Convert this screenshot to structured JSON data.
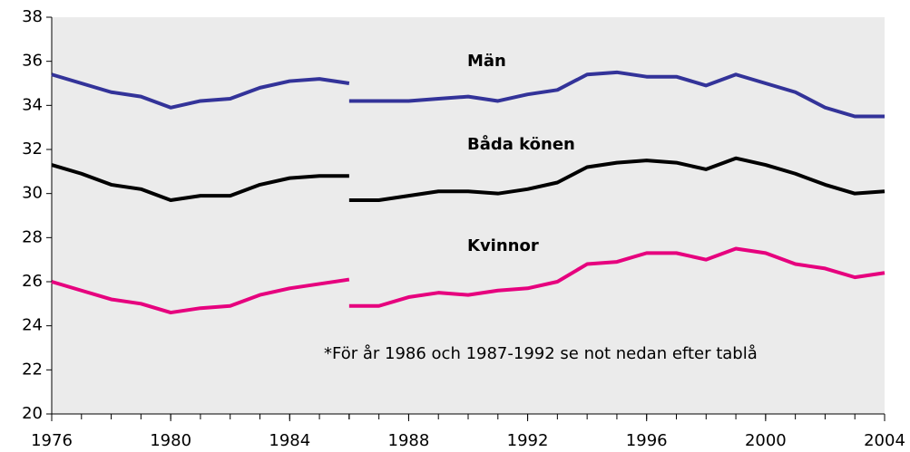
{
  "chart_data": {
    "type": "line",
    "x": [
      1976,
      1977,
      1978,
      1979,
      1980,
      1981,
      1982,
      1983,
      1984,
      1985,
      1986,
      1986,
      1986,
      1987,
      1988,
      1989,
      1990,
      1991,
      1992,
      1993,
      1994,
      1995,
      1996,
      1997,
      1998,
      1999,
      2000,
      2001,
      2002,
      2003,
      2004
    ],
    "series": [
      {
        "name": "Män",
        "color": "#333399",
        "values": [
          35.4,
          35.0,
          34.6,
          34.4,
          33.9,
          34.2,
          34.3,
          34.8,
          35.1,
          35.2,
          35.0,
          null,
          34.2,
          34.2,
          34.2,
          34.3,
          34.4,
          34.2,
          34.5,
          34.7,
          35.4,
          35.5,
          35.3,
          35.3,
          34.9,
          35.4,
          35.0,
          34.6,
          33.9,
          33.5,
          33.5
        ]
      },
      {
        "name": "Båda könen",
        "color": "#000000",
        "values": [
          31.3,
          30.9,
          30.4,
          30.2,
          29.7,
          29.9,
          29.9,
          30.4,
          30.7,
          30.8,
          30.8,
          null,
          29.7,
          29.7,
          29.9,
          30.1,
          30.1,
          30.0,
          30.2,
          30.5,
          31.2,
          31.4,
          31.5,
          31.4,
          31.1,
          31.6,
          31.3,
          30.9,
          30.4,
          30.0,
          30.1
        ]
      },
      {
        "name": "Kvinnor",
        "color": "#e6007e",
        "values": [
          26.0,
          25.6,
          25.2,
          25.0,
          24.6,
          24.8,
          24.9,
          25.4,
          25.7,
          25.9,
          26.1,
          null,
          24.9,
          24.9,
          25.3,
          25.5,
          25.4,
          25.6,
          25.7,
          26.0,
          26.8,
          26.9,
          27.3,
          27.3,
          27.0,
          27.5,
          27.3,
          26.8,
          26.6,
          26.2,
          26.4
        ]
      }
    ],
    "annotation": "*För år 1986 och 1987-1992 se not nedan efter tablå",
    "xlim": [
      1976,
      2004
    ],
    "xticks": [
      1976,
      1980,
      1984,
      1988,
      1992,
      1996,
      2000,
      2004
    ],
    "ylim": [
      20,
      38
    ],
    "yticks": [
      20,
      22,
      24,
      26,
      28,
      30,
      32,
      34,
      36,
      38
    ]
  }
}
